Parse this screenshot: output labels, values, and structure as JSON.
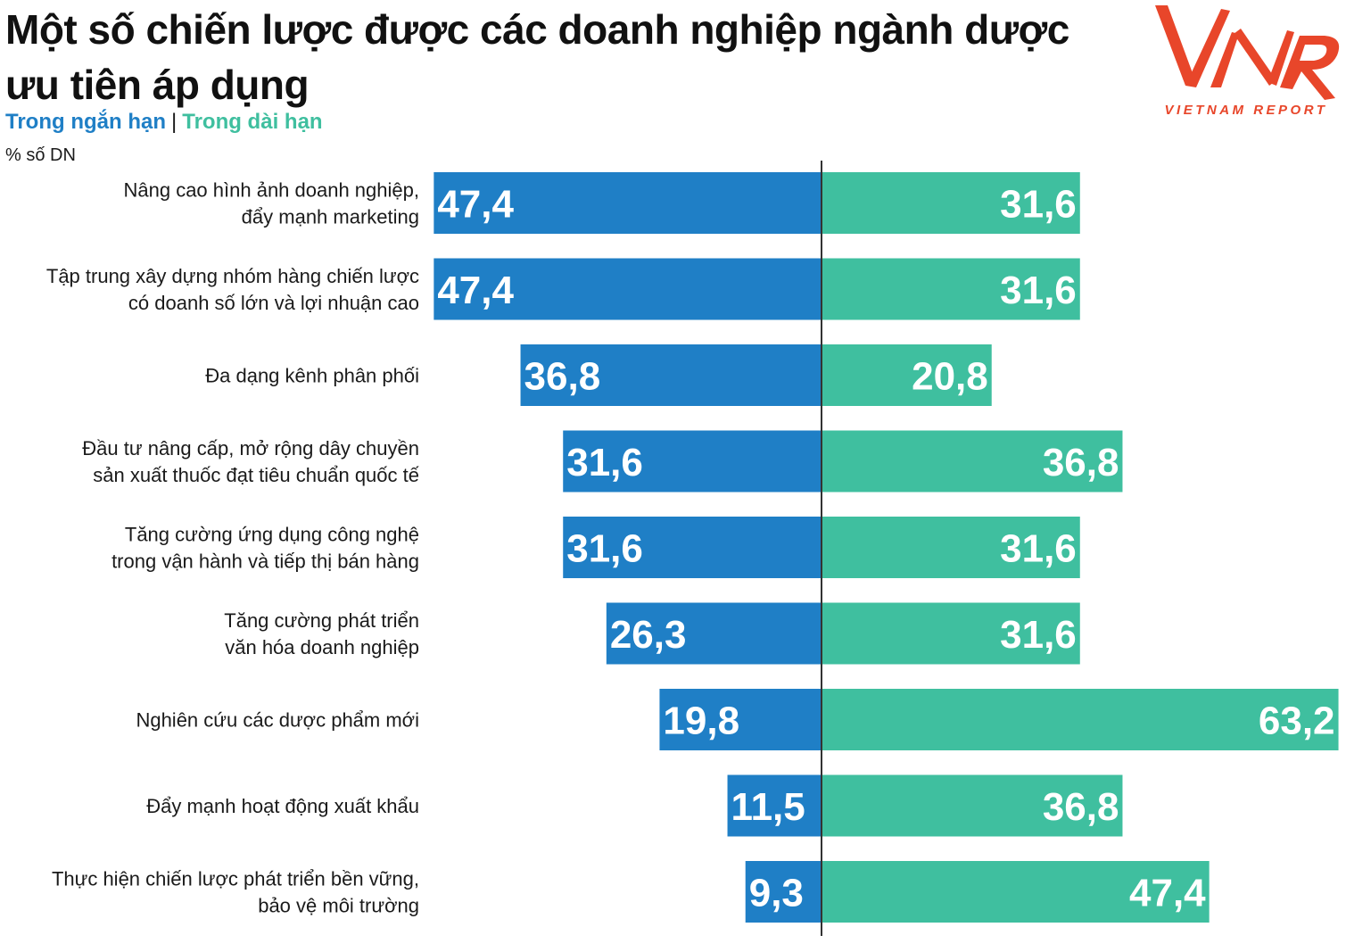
{
  "title_line1": "Một số chiến lược được các doanh nghiệp ngành dược",
  "title_line2": "ưu tiên áp dụng",
  "legend_short": "Trong ngắn hạn",
  "legend_separator": "|",
  "legend_long": "Trong dài hạn",
  "unit_label": "% số DN",
  "logo": {
    "mark": "VNR",
    "text": "VIETNAM REPORT",
    "color": "#e8462a"
  },
  "colors": {
    "short_term": "#1f7fc6",
    "long_term": "#3fbf9f",
    "axis": "#333333"
  },
  "chart_data": {
    "type": "bar",
    "orientation": "horizontal-diverging",
    "title": "Một số chiến lược được các doanh nghiệp ngành dược ưu tiên áp dụng",
    "ylabel": "% số DN",
    "categories": [
      [
        "Nâng cao hình ảnh doanh nghiệp,",
        "đẩy mạnh marketing"
      ],
      [
        "Tập trung xây dựng nhóm hàng chiến lược",
        "có doanh số lớn và lợi nhuận cao"
      ],
      [
        "Đa dạng kênh phân phối"
      ],
      [
        "Đầu tư nâng cấp, mở rộng dây chuyền",
        "sản xuất thuốc đạt tiêu chuẩn quốc tế"
      ],
      [
        "Tăng cường ứng dụng công nghệ",
        "trong vận hành và tiếp thị bán hàng"
      ],
      [
        "Tăng cường phát triển",
        "văn hóa doanh nghiệp"
      ],
      [
        "Nghiên cứu các dược phẩm mới"
      ],
      [
        "Đẩy mạnh hoạt động xuất khẩu"
      ],
      [
        "Thực hiện chiến lược phát triển bền vững,",
        "bảo vệ môi trường"
      ]
    ],
    "series": [
      {
        "name": "Trong ngắn hạn",
        "values": [
          47.4,
          47.4,
          36.8,
          31.6,
          31.6,
          26.3,
          19.8,
          11.5,
          9.3
        ],
        "labels": [
          "47,4",
          "47,4",
          "36,8",
          "31,6",
          "31,6",
          "26,3",
          "19,8",
          "11,5",
          "9,3"
        ]
      },
      {
        "name": "Trong dài hạn",
        "values": [
          31.6,
          31.6,
          20.8,
          36.8,
          31.6,
          31.6,
          63.2,
          36.8,
          47.4
        ],
        "labels": [
          "31,6",
          "31,6",
          "20,8",
          "36,8",
          "31,6",
          "31,6",
          "63,2",
          "36,8",
          "47,4"
        ]
      }
    ]
  }
}
